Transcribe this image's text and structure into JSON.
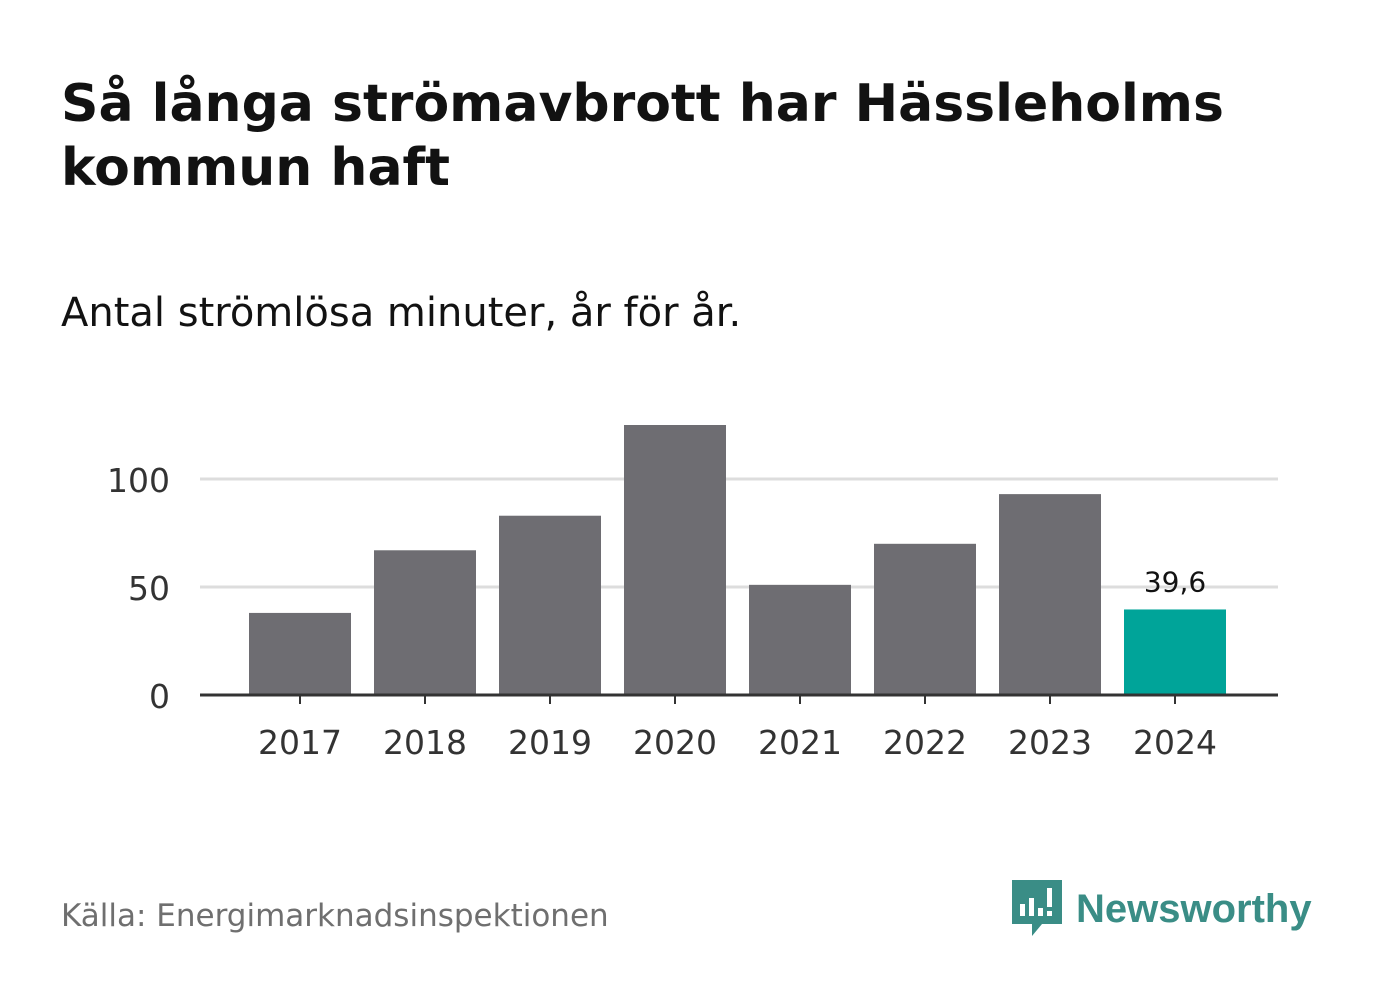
{
  "title": "Så långa strömavbrott har Hässleholms kommun haft",
  "subtitle": "Antal strömlösa minuter, år för år.",
  "source": "Källa: Energimarknadsinspektionen",
  "brand": {
    "name": "Newsworthy",
    "icon": "newsworthy-logo-icon",
    "color": "#3a8d86"
  },
  "colors": {
    "bar": "#6e6d72",
    "highlight": "#00a499",
    "grid": "#dddddd",
    "axis": "#333333"
  },
  "chart_data": {
    "type": "bar",
    "categories": [
      "2017",
      "2018",
      "2019",
      "2020",
      "2021",
      "2022",
      "2023",
      "2024"
    ],
    "values": [
      38,
      67,
      83,
      125,
      51,
      70,
      93,
      39.6
    ],
    "highlight_index": 7,
    "data_labels": [
      {
        "index": 7,
        "text": "39,6"
      }
    ],
    "yticks": [
      0,
      50,
      100
    ],
    "ytick_labels": [
      "0",
      "50",
      "100"
    ],
    "ylim": [
      0,
      125
    ],
    "xlabel": "",
    "ylabel": "",
    "grid": true
  }
}
